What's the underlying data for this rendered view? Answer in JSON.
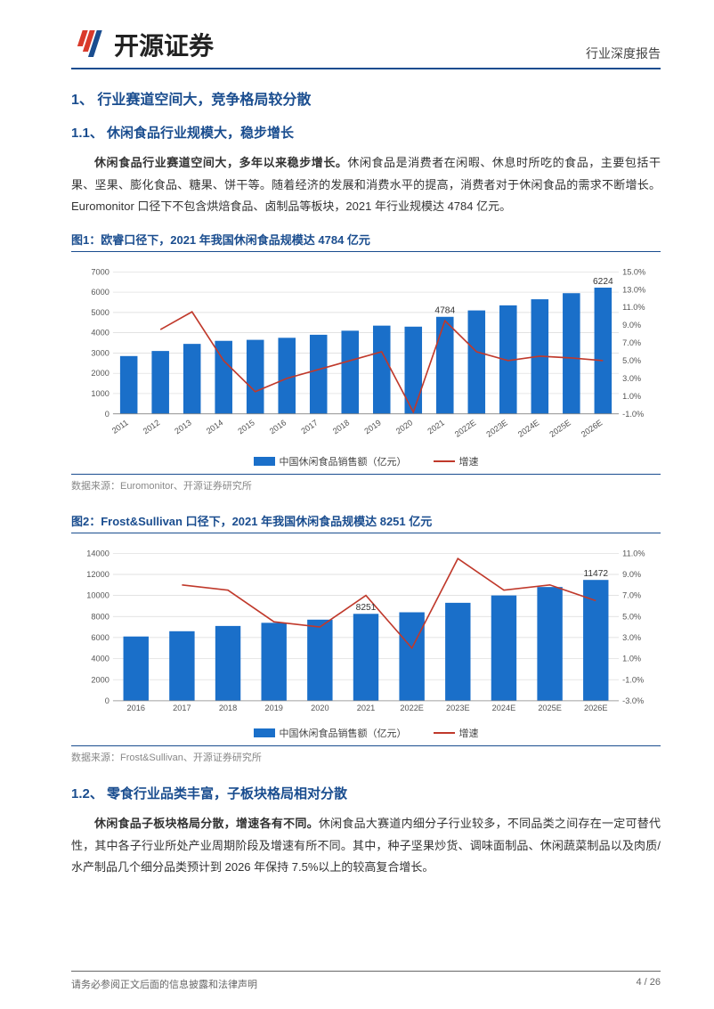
{
  "header": {
    "company": "开源证券",
    "report_type": "行业深度报告"
  },
  "logo": {
    "bar_colors": [
      "#d93a2b",
      "#d93a2b",
      "#1a4d8f"
    ]
  },
  "section1": {
    "num": "1、",
    "title": "行业赛道空间大，竞争格局较分散"
  },
  "section11": {
    "num": "1.1、",
    "title": "休闲食品行业规模大，稳步增长",
    "para_bold": "休闲食品行业赛道空间大，多年以来稳步增长。",
    "para_rest": "休闲食品是消费者在闲暇、休息时所吃的食品，主要包括干果、坚果、膨化食品、糖果、饼干等。随着经济的发展和消费水平的提高，消费者对于休闲食品的需求不断增长。Euromonitor 口径下不包含烘焙食品、卤制品等板块，2021 年行业规模达 4784 亿元。"
  },
  "fig1": {
    "title": "图1：欧睿口径下，2021 年我国休闲食品规模达 4784 亿元",
    "source_label": "数据来源：",
    "source_value": "Euromonitor、开源证券研究所",
    "type": "bar+line",
    "categories": [
      "2011",
      "2012",
      "2013",
      "2014",
      "2015",
      "2016",
      "2017",
      "2018",
      "2019",
      "2020",
      "2021",
      "2022E",
      "2023E",
      "2024E",
      "2025E",
      "2026E"
    ],
    "bar_values": [
      2850,
      3100,
      3450,
      3600,
      3650,
      3750,
      3900,
      4100,
      4350,
      4300,
      4784,
      5100,
      5350,
      5650,
      5950,
      6224
    ],
    "line_values": [
      null,
      8.5,
      10.5,
      5.0,
      1.5,
      3.0,
      4.0,
      5.0,
      6.0,
      -0.8,
      9.5,
      6.0,
      5.0,
      5.5,
      5.3,
      5.0
    ],
    "annotations": [
      {
        "x_index": 10,
        "value": 4784,
        "label": "4784"
      },
      {
        "x_index": 15,
        "value": 6224,
        "label": "6224"
      }
    ],
    "y_left": {
      "min": 0,
      "max": 7000,
      "step": 1000
    },
    "y_right": {
      "min": -1.0,
      "max": 15.0,
      "ticks": [
        -1.0,
        1.0,
        3.0,
        5.0,
        7.0,
        9.0,
        11.0,
        13.0,
        15.0
      ],
      "suffix": "%"
    },
    "bar_color": "#1a6fc9",
    "line_color": "#c0392b",
    "grid_color": "#d9d9d9",
    "bg_color": "#ffffff",
    "legend_bar": "中国休闲食品销售额（亿元）",
    "legend_line": "增速",
    "label_fontsize": 9,
    "axis_fontsize": 9
  },
  "fig2": {
    "title": "图2：Frost&Sullivan 口径下，2021 年我国休闲食品规模达 8251 亿元",
    "source_label": "数据来源：",
    "source_value": "Frost&Sullivan、开源证券研究所",
    "type": "bar+line",
    "categories": [
      "2016",
      "2017",
      "2018",
      "2019",
      "2020",
      "2021",
      "2022E",
      "2023E",
      "2024E",
      "2025E",
      "2026E"
    ],
    "bar_values": [
      6100,
      6600,
      7100,
      7400,
      7700,
      8251,
      8400,
      9300,
      10000,
      10800,
      11472
    ],
    "line_values": [
      null,
      8.0,
      7.5,
      4.5,
      4.0,
      7.0,
      2.0,
      10.5,
      7.5,
      8.0,
      6.5
    ],
    "annotations": [
      {
        "x_index": 5,
        "value": 8251,
        "label": "8251"
      },
      {
        "x_index": 10,
        "value": 11472,
        "label": "11472"
      }
    ],
    "y_left": {
      "min": 0,
      "max": 14000,
      "step": 2000
    },
    "y_right": {
      "min": -3.0,
      "max": 11.0,
      "ticks": [
        -3.0,
        -1.0,
        1.0,
        3.0,
        5.0,
        7.0,
        9.0,
        11.0
      ],
      "suffix": "%"
    },
    "bar_color": "#1a6fc9",
    "line_color": "#c0392b",
    "grid_color": "#d9d9d9",
    "bg_color": "#ffffff",
    "legend_bar": "中国休闲食品销售额（亿元）",
    "legend_line": "增速",
    "label_fontsize": 9,
    "axis_fontsize": 9
  },
  "section12": {
    "num": "1.2、",
    "title": "零食行业品类丰富，子板块格局相对分散",
    "para_bold": "休闲食品子板块格局分散，增速各有不同。",
    "para_rest": "休闲食品大赛道内细分子行业较多，不同品类之间存在一定可替代性，其中各子行业所处产业周期阶段及增速有所不同。其中，种子坚果炒货、调味面制品、休闲蔬菜制品以及肉质/水产制品几个细分品类预计到 2026 年保持 7.5%以上的较高复合增长。"
  },
  "footer": {
    "disclaimer": "请务必参阅正文后面的信息披露和法律声明",
    "page": "4 / 26"
  }
}
